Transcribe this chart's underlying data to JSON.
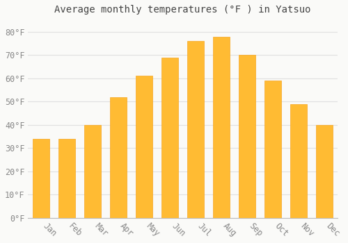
{
  "title": "Average monthly temperatures (°F ) in Yatsuo",
  "months": [
    "Jan",
    "Feb",
    "Mar",
    "Apr",
    "May",
    "Jun",
    "Jul",
    "Aug",
    "Sep",
    "Oct",
    "Nov",
    "Dec"
  ],
  "values": [
    34,
    34,
    40,
    52,
    61,
    69,
    76,
    78,
    70,
    59,
    49,
    40
  ],
  "bar_color": "#FFBB33",
  "bar_edge_color": "#F5A623",
  "background_color": "#FAFAF8",
  "plot_bg_color": "#FAFAF8",
  "grid_color": "#E0E0E0",
  "yticks": [
    0,
    10,
    20,
    30,
    40,
    50,
    60,
    70,
    80
  ],
  "ylim": [
    0,
    85
  ],
  "title_fontsize": 10,
  "tick_fontsize": 8.5,
  "tick_color": "#888888",
  "title_color": "#444444",
  "font_family": "monospace"
}
